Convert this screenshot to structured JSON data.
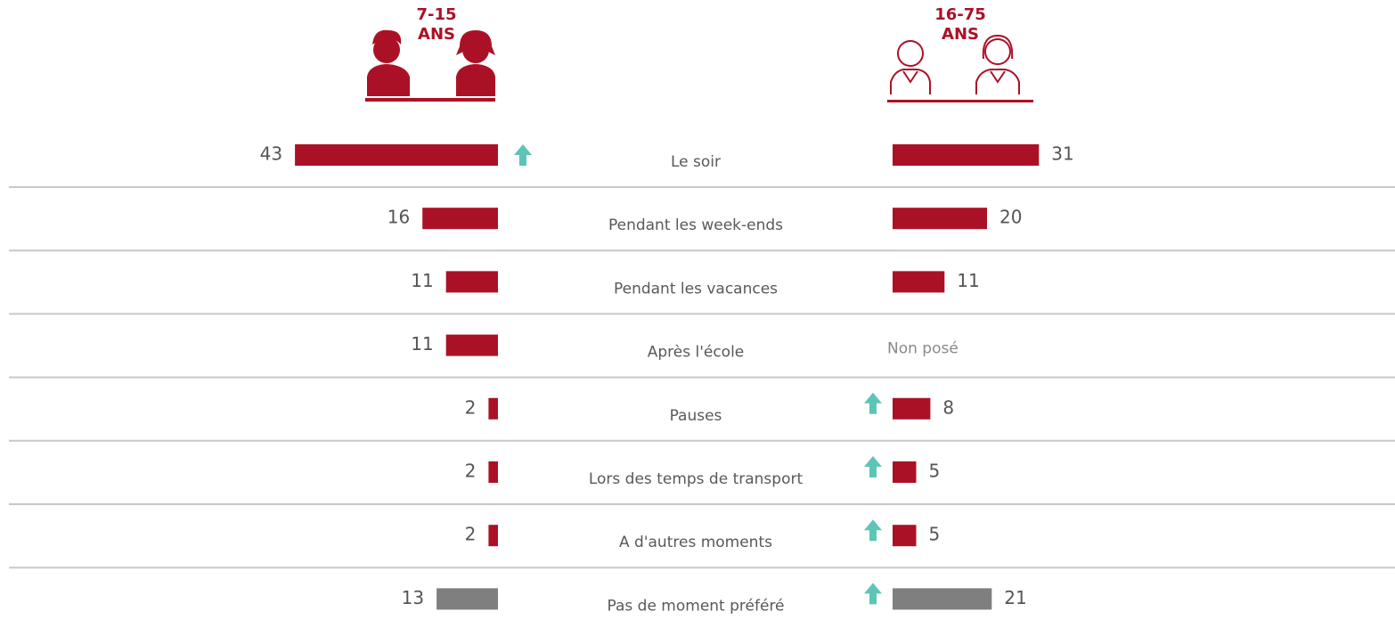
{
  "chart_data": {
    "type": "butterfly_bar",
    "categories": [
      "Le soir",
      "Pendant les week-ends",
      "Pendant les vacances",
      "Après l'école",
      "Pauses",
      "Lors des temps de transport",
      "A d'autres moments",
      "Pas de moment préféré"
    ],
    "series": [
      {
        "name": "7-15 ANS",
        "values": [
          43,
          16,
          11,
          11,
          2,
          2,
          2,
          13
        ],
        "colors": [
          "#ab1126",
          "#ab1126",
          "#ab1126",
          "#ab1126",
          "#ab1126",
          "#ab1126",
          "#ab1126",
          "#7f7f7f"
        ],
        "up": [
          true,
          false,
          false,
          false,
          false,
          false,
          false,
          false
        ]
      },
      {
        "name": "16-75 ANS",
        "values": [
          31,
          20,
          11,
          null,
          8,
          5,
          5,
          21
        ],
        "value_labels": [
          "31",
          "20",
          "11",
          "Non posé",
          "8",
          "5",
          "5",
          "21"
        ],
        "colors": [
          "#ab1126",
          "#ab1126",
          "#ab1126",
          "#ab1126",
          "#ab1126",
          "#ab1126",
          "#ab1126",
          "#7f7f7f"
        ],
        "up": [
          false,
          false,
          false,
          false,
          true,
          true,
          true,
          true
        ]
      }
    ],
    "arrow_color": "#5cc5b8"
  }
}
